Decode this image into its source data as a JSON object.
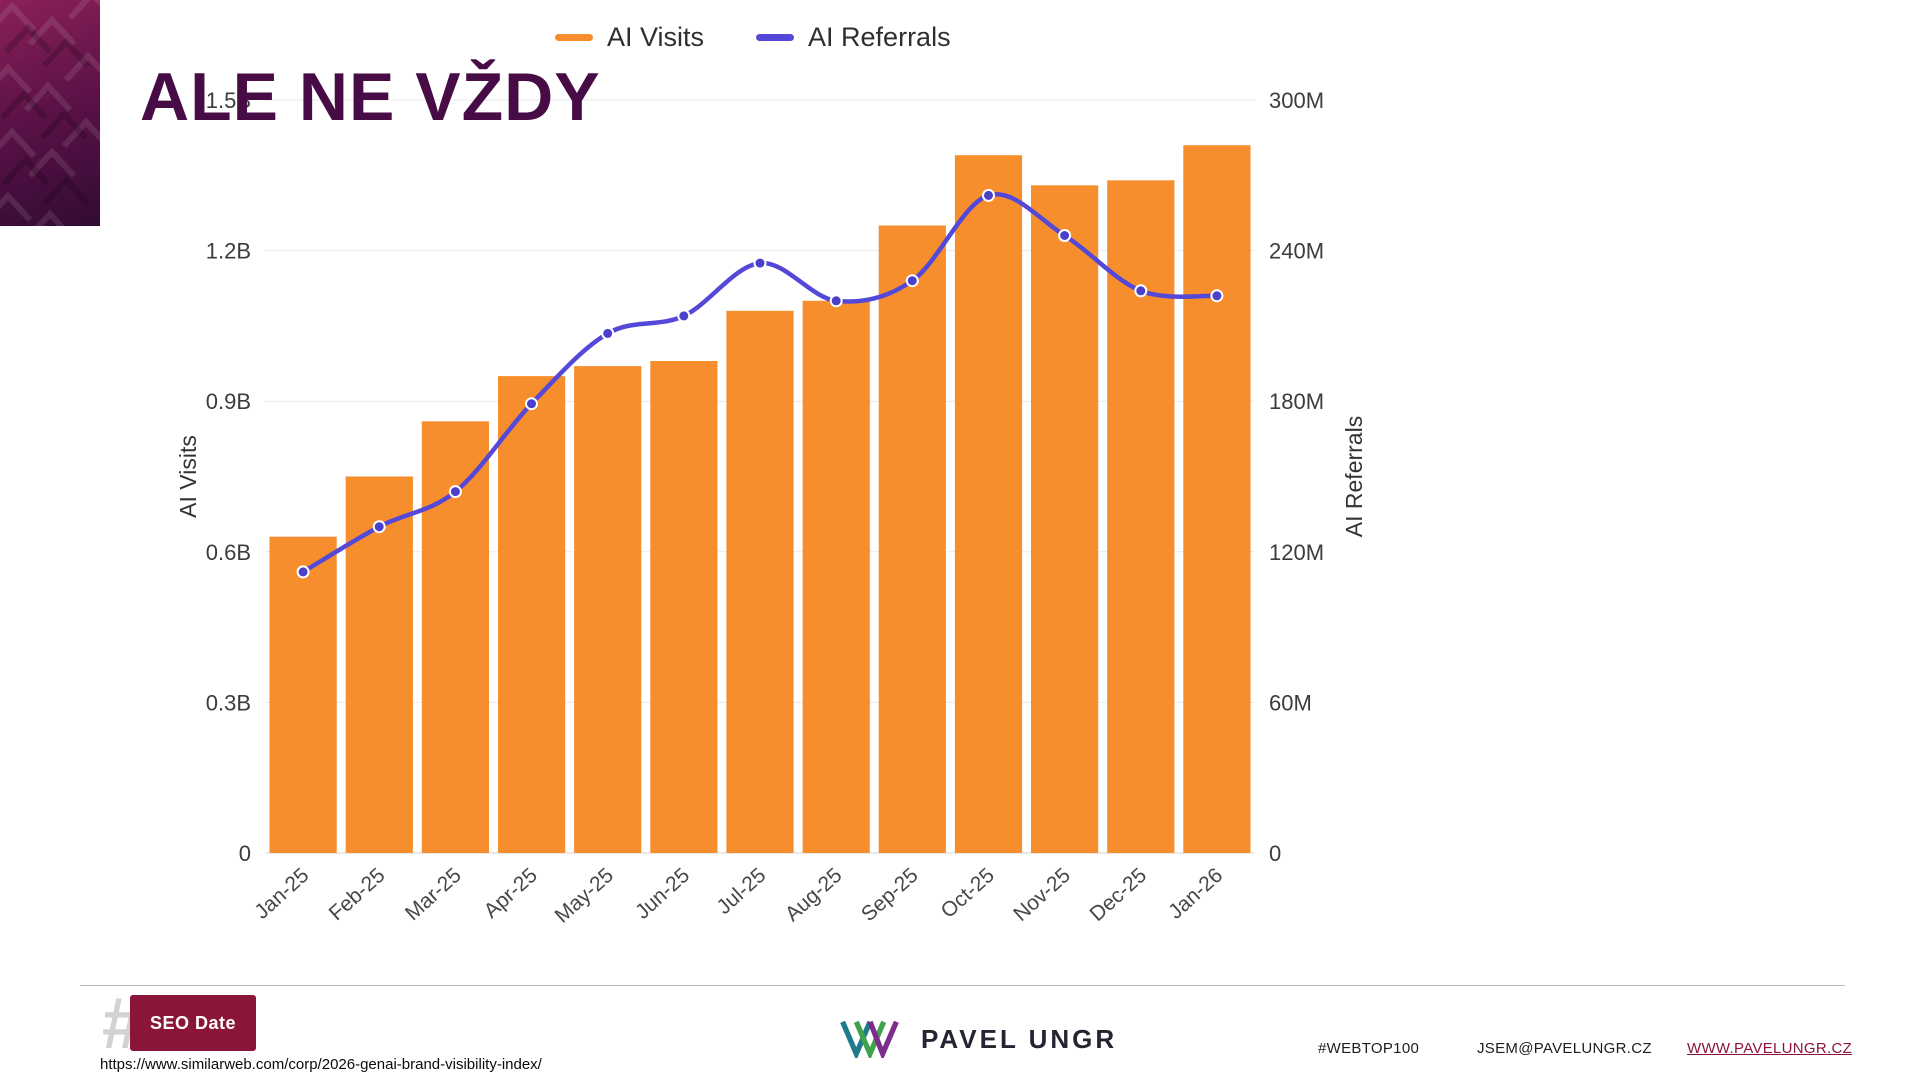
{
  "slide": {
    "title": "ALE NE VŽDY",
    "source_url": "https://www.similarweb.com/corp/2026-genai-brand-visibility-index/"
  },
  "colors": {
    "bar_orange": "#F78E2E",
    "line_purple": "#5348D8",
    "title_plum": "#470c45",
    "footer_maroon": "#8a1538"
  },
  "chart_data": {
    "type": "bar+line combo",
    "categories": [
      "Jan-25",
      "Feb-25",
      "Mar-25",
      "Apr-25",
      "May-25",
      "Jun-25",
      "Jul-25",
      "Aug-25",
      "Sep-25",
      "Oct-25",
      "Nov-25",
      "Dec-25",
      "Jan-26"
    ],
    "series": [
      {
        "name": "AI Visits",
        "type": "bar",
        "axis": "left",
        "unit": "B",
        "color": "#F78E2E",
        "values": [
          0.63,
          0.75,
          0.86,
          0.95,
          0.97,
          0.98,
          1.08,
          1.1,
          1.25,
          1.39,
          1.33,
          1.34,
          1.41
        ]
      },
      {
        "name": "AI Referrals",
        "type": "line",
        "axis": "right",
        "unit": "M",
        "color": "#5348D8",
        "values": [
          112,
          130,
          144,
          179,
          207,
          214,
          235,
          220,
          228,
          262,
          246,
          224,
          222
        ]
      }
    ],
    "left_axis": {
      "label": "AI Visits",
      "max": 1.5,
      "ticks": [
        "0",
        "0.3B",
        "0.6B",
        "0.9B",
        "1.2B",
        "1.5B"
      ]
    },
    "right_axis": {
      "label": "AI Referrals",
      "max": 300,
      "ticks": [
        "0",
        "60M",
        "120M",
        "180M",
        "240M",
        "300M"
      ]
    },
    "grid": true,
    "legend_position": "top"
  },
  "footer": {
    "seodate_hash": "#",
    "seodate_label": "SEO Date",
    "brand_name": "PAVEL UNGR",
    "hashtag": "#WEBTOP100",
    "email": "JSEM@PAVELUNGR.CZ",
    "website": "WWW.PAVELUNGR.CZ"
  }
}
